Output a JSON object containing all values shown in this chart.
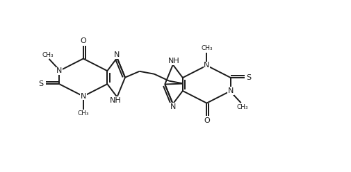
{
  "line_color": "#1a1a1a",
  "bg_color": "#ffffff",
  "line_width": 1.4,
  "font_size": 7.5,
  "fig_width": 5.06,
  "fig_height": 2.48,
  "dpi": 100,
  "xlim": [
    0,
    10
  ],
  "ylim": [
    0,
    5
  ]
}
